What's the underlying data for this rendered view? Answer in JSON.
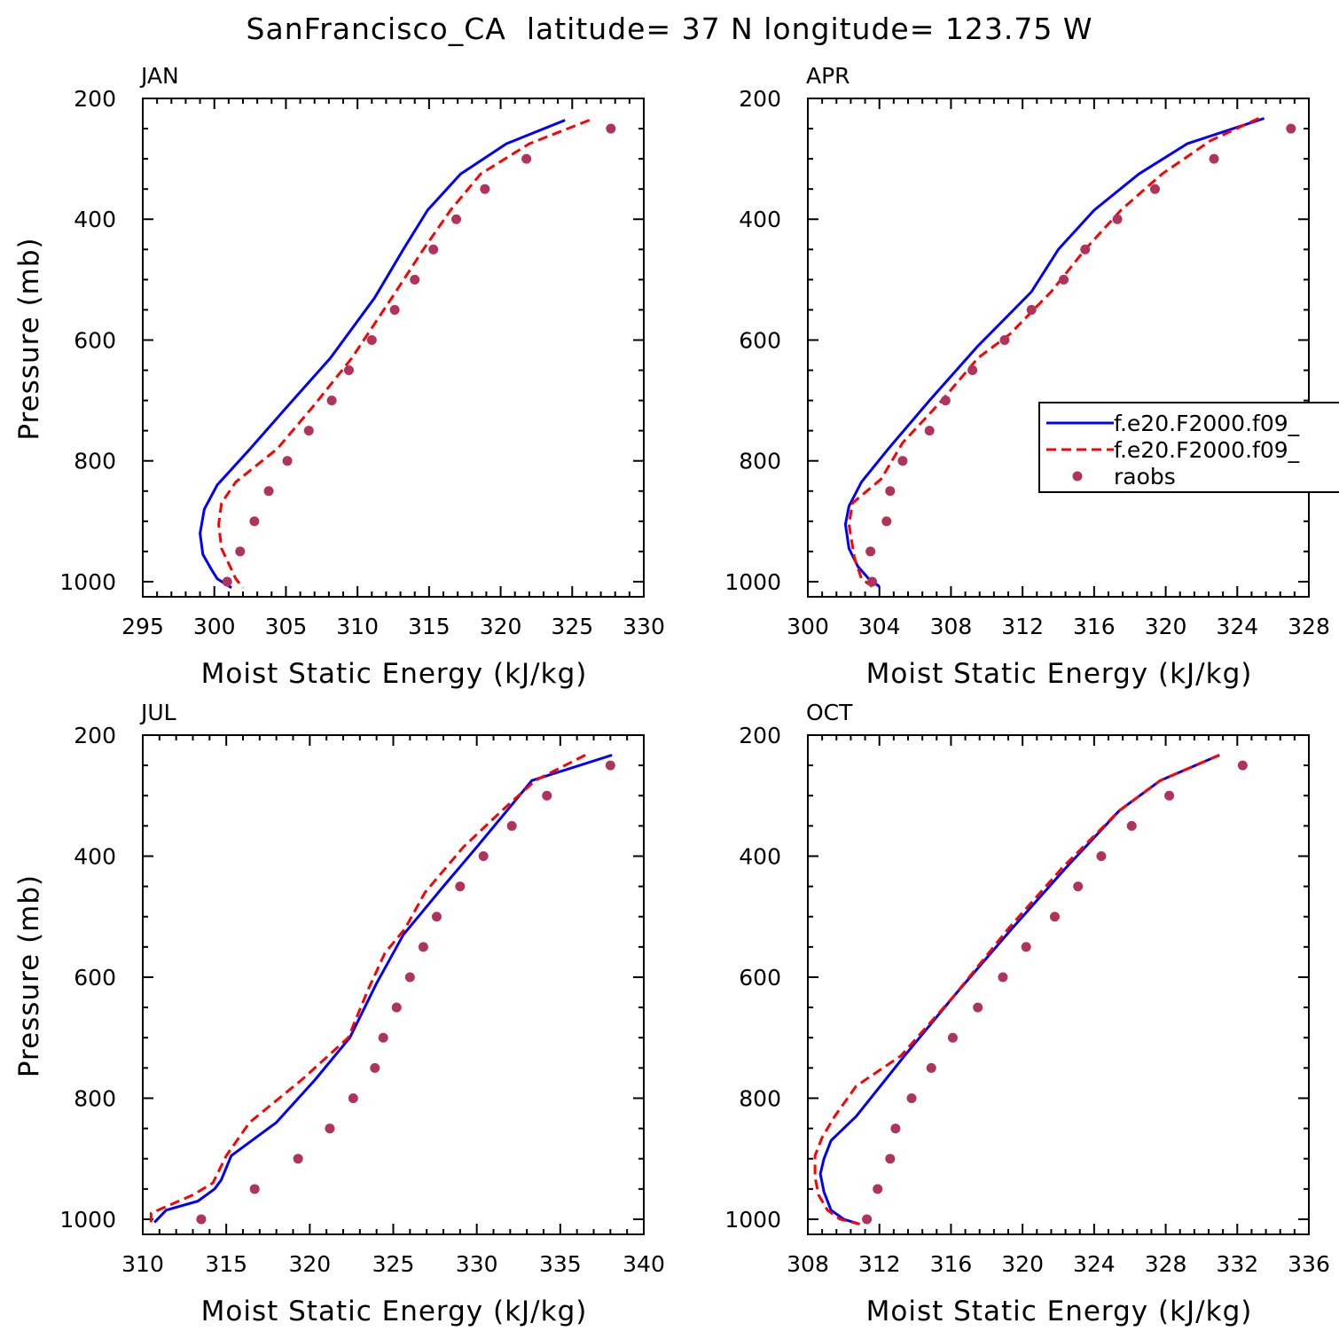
{
  "page_title": "SanFrancisco_CA  latitude= 37 N longitude= 123.75 W",
  "chart_data": [
    {
      "type": "line",
      "panel": "JAN",
      "xlabel": "Moist Static Energy (kJ/kg)",
      "ylabel": "Pressure (mb)",
      "xlim": [
        295,
        330
      ],
      "ylim": [
        200,
        1025
      ],
      "y_inverted": true,
      "xticks": [
        295,
        300,
        305,
        310,
        315,
        320,
        325,
        330
      ],
      "yticks": [
        200,
        400,
        600,
        800,
        1000
      ],
      "series": [
        {
          "name": "f.e20.F2000.f09_",
          "style": "solid",
          "color": "#0000ff",
          "x": [
            324.5,
            320.4,
            317.2,
            314.9,
            313.2,
            311.2,
            308.1,
            305.1,
            302.5,
            300.2,
            299.3,
            299.0,
            299.2,
            299.8,
            300.2,
            301.2
          ],
          "y": [
            236,
            275,
            325,
            385,
            450,
            530,
            630,
            710,
            780,
            840,
            880,
            920,
            955,
            980,
            995,
            1010
          ]
        },
        {
          "name": "f.e20.F2000.f09_",
          "style": "dashed",
          "color": "#ff0000",
          "x": [
            326.2,
            322.0,
            318.6,
            316.5,
            314.6,
            312.4,
            309.6,
            306.9,
            304.4,
            301.5,
            300.5,
            300.3,
            300.5,
            301.1,
            301.5,
            302.0
          ],
          "y": [
            236,
            275,
            325,
            385,
            450,
            530,
            630,
            710,
            780,
            835,
            870,
            905,
            945,
            975,
            995,
            1010
          ]
        },
        {
          "name": "raobs",
          "style": "dots",
          "color": "#b0335c",
          "x": [
            327.7,
            321.8,
            318.9,
            316.9,
            315.3,
            314.0,
            312.6,
            311.0,
            309.4,
            308.2,
            306.6,
            305.1,
            303.8,
            302.8,
            301.8,
            300.9
          ],
          "y": [
            250,
            300,
            350,
            400,
            450,
            500,
            550,
            600,
            650,
            700,
            750,
            800,
            850,
            900,
            950,
            1000
          ]
        }
      ]
    },
    {
      "type": "line",
      "panel": "APR",
      "xlabel": "Moist Static Energy (kJ/kg)",
      "ylabel": "",
      "xlim": [
        300,
        328
      ],
      "ylim": [
        200,
        1025
      ],
      "y_inverted": true,
      "xticks": [
        300,
        304,
        308,
        312,
        316,
        320,
        324,
        328
      ],
      "yticks": [
        200,
        400,
        600,
        800,
        1000
      ],
      "series": [
        {
          "name": "f.e20.F2000.f09_",
          "style": "solid",
          "color": "#0000ff",
          "x": [
            325.5,
            321.2,
            318.5,
            316.0,
            314.0,
            312.5,
            309.5,
            306.8,
            304.5,
            303.0,
            302.3,
            302.1,
            302.3,
            302.8,
            303.4,
            304.0
          ],
          "y": [
            233,
            275,
            325,
            385,
            450,
            520,
            610,
            700,
            780,
            835,
            875,
            905,
            945,
            975,
            995,
            1008
          ]
        },
        {
          "name": "f.e20.F2000.f09_",
          "style": "dashed",
          "color": "#ff0000",
          "x": [
            325.2,
            322.5,
            319.8,
            317.5,
            315.5,
            313.6,
            311.3,
            309.5,
            307.5,
            305.3,
            304.1,
            302.5,
            302.3,
            302.6,
            303.0,
            303.6
          ],
          "y": [
            233,
            270,
            325,
            385,
            450,
            520,
            590,
            630,
            700,
            770,
            830,
            870,
            905,
            960,
            995,
            1008
          ]
        },
        {
          "name": "raobs",
          "style": "dots",
          "color": "#b0335c",
          "x": [
            327.0,
            322.7,
            319.4,
            317.3,
            315.5,
            314.3,
            312.5,
            311.0,
            309.2,
            307.7,
            306.8,
            305.3,
            304.6,
            304.4,
            303.5,
            303.6
          ],
          "y": [
            250,
            300,
            350,
            400,
            450,
            500,
            550,
            600,
            650,
            700,
            750,
            800,
            850,
            900,
            950,
            1000
          ]
        }
      ],
      "legend": {
        "placement": "right",
        "entries": [
          "f.e20.F2000.f09_",
          "f.e20.F2000.f09_",
          "raobs"
        ]
      }
    },
    {
      "type": "line",
      "panel": "JUL",
      "xlabel": "Moist Static Energy (kJ/kg)",
      "ylabel": "Pressure (mb)",
      "xlim": [
        310,
        340
      ],
      "ylim": [
        200,
        1025
      ],
      "y_inverted": true,
      "xticks": [
        310,
        315,
        320,
        325,
        330,
        335,
        340
      ],
      "yticks": [
        200,
        400,
        600,
        800,
        1000
      ],
      "series": [
        {
          "name": "f.e20.F2000.f09_",
          "style": "solid",
          "color": "#0000ff",
          "x": [
            338.1,
            333.3,
            331.8,
            330.0,
            328.0,
            325.6,
            324.0,
            322.4,
            320.3,
            318.0,
            315.3,
            314.7,
            314.3,
            313.3,
            311.4,
            310.7
          ],
          "y": [
            233,
            275,
            325,
            385,
            450,
            530,
            610,
            700,
            770,
            840,
            895,
            935,
            950,
            970,
            985,
            1005
          ]
        },
        {
          "name": "f.e20.F2000.f09_",
          "style": "dashed",
          "color": "#ff0000",
          "x": [
            336.5,
            333.5,
            331.5,
            329.2,
            326.9,
            325.7,
            324.5,
            323.5,
            322.3,
            319.5,
            316.4,
            315.0,
            314.2,
            313.0,
            310.5,
            310.5
          ],
          "y": [
            233,
            275,
            325,
            385,
            460,
            520,
            560,
            620,
            700,
            770,
            840,
            895,
            940,
            960,
            990,
            1005
          ]
        },
        {
          "name": "raobs",
          "style": "dots",
          "color": "#b0335c",
          "x": [
            338.0,
            334.2,
            332.1,
            330.4,
            329.0,
            327.6,
            326.8,
            326.0,
            325.2,
            324.4,
            323.9,
            322.6,
            321.2,
            319.3,
            316.7,
            313.5
          ],
          "y": [
            250,
            300,
            350,
            400,
            450,
            500,
            550,
            600,
            650,
            700,
            750,
            800,
            850,
            900,
            950,
            1000
          ]
        }
      ]
    },
    {
      "type": "line",
      "panel": "OCT",
      "xlabel": "Moist Static Energy (kJ/kg)",
      "ylabel": "",
      "xlim": [
        308,
        336
      ],
      "ylim": [
        200,
        1025
      ],
      "y_inverted": true,
      "xticks": [
        308,
        312,
        316,
        320,
        324,
        328,
        332,
        336
      ],
      "yticks": [
        200,
        400,
        600,
        800,
        1000
      ],
      "series": [
        {
          "name": "f.e20.F2000.f09_",
          "style": "solid",
          "color": "#0000ff",
          "x": [
            331.0,
            327.7,
            325.4,
            322.4,
            319.4,
            316.2,
            313.4,
            310.7,
            309.3,
            308.9,
            308.7,
            308.9,
            309.3,
            310.0,
            310.9
          ],
          "y": [
            233,
            275,
            325,
            420,
            520,
            630,
            730,
            830,
            870,
            900,
            925,
            955,
            985,
            1000,
            1008
          ]
        },
        {
          "name": "f.e20.F2000.f09_",
          "style": "dashed",
          "color": "#ff0000",
          "x": [
            331.0,
            327.7,
            325.4,
            322.2,
            319.2,
            316.2,
            313.2,
            310.7,
            309.5,
            308.8,
            308.4,
            308.4,
            308.6,
            309.1,
            309.8,
            310.9
          ],
          "y": [
            233,
            275,
            325,
            420,
            520,
            630,
            730,
            780,
            830,
            865,
            895,
            930,
            960,
            985,
            1000,
            1008
          ]
        },
        {
          "name": "raobs",
          "style": "dots",
          "color": "#b0335c",
          "x": [
            332.3,
            328.2,
            326.1,
            324.4,
            323.1,
            321.8,
            320.2,
            318.9,
            317.5,
            316.1,
            314.9,
            313.8,
            312.9,
            312.6,
            311.9,
            311.3
          ],
          "y": [
            250,
            300,
            350,
            400,
            450,
            500,
            550,
            600,
            650,
            700,
            750,
            800,
            850,
            900,
            950,
            1000
          ]
        }
      ]
    }
  ]
}
